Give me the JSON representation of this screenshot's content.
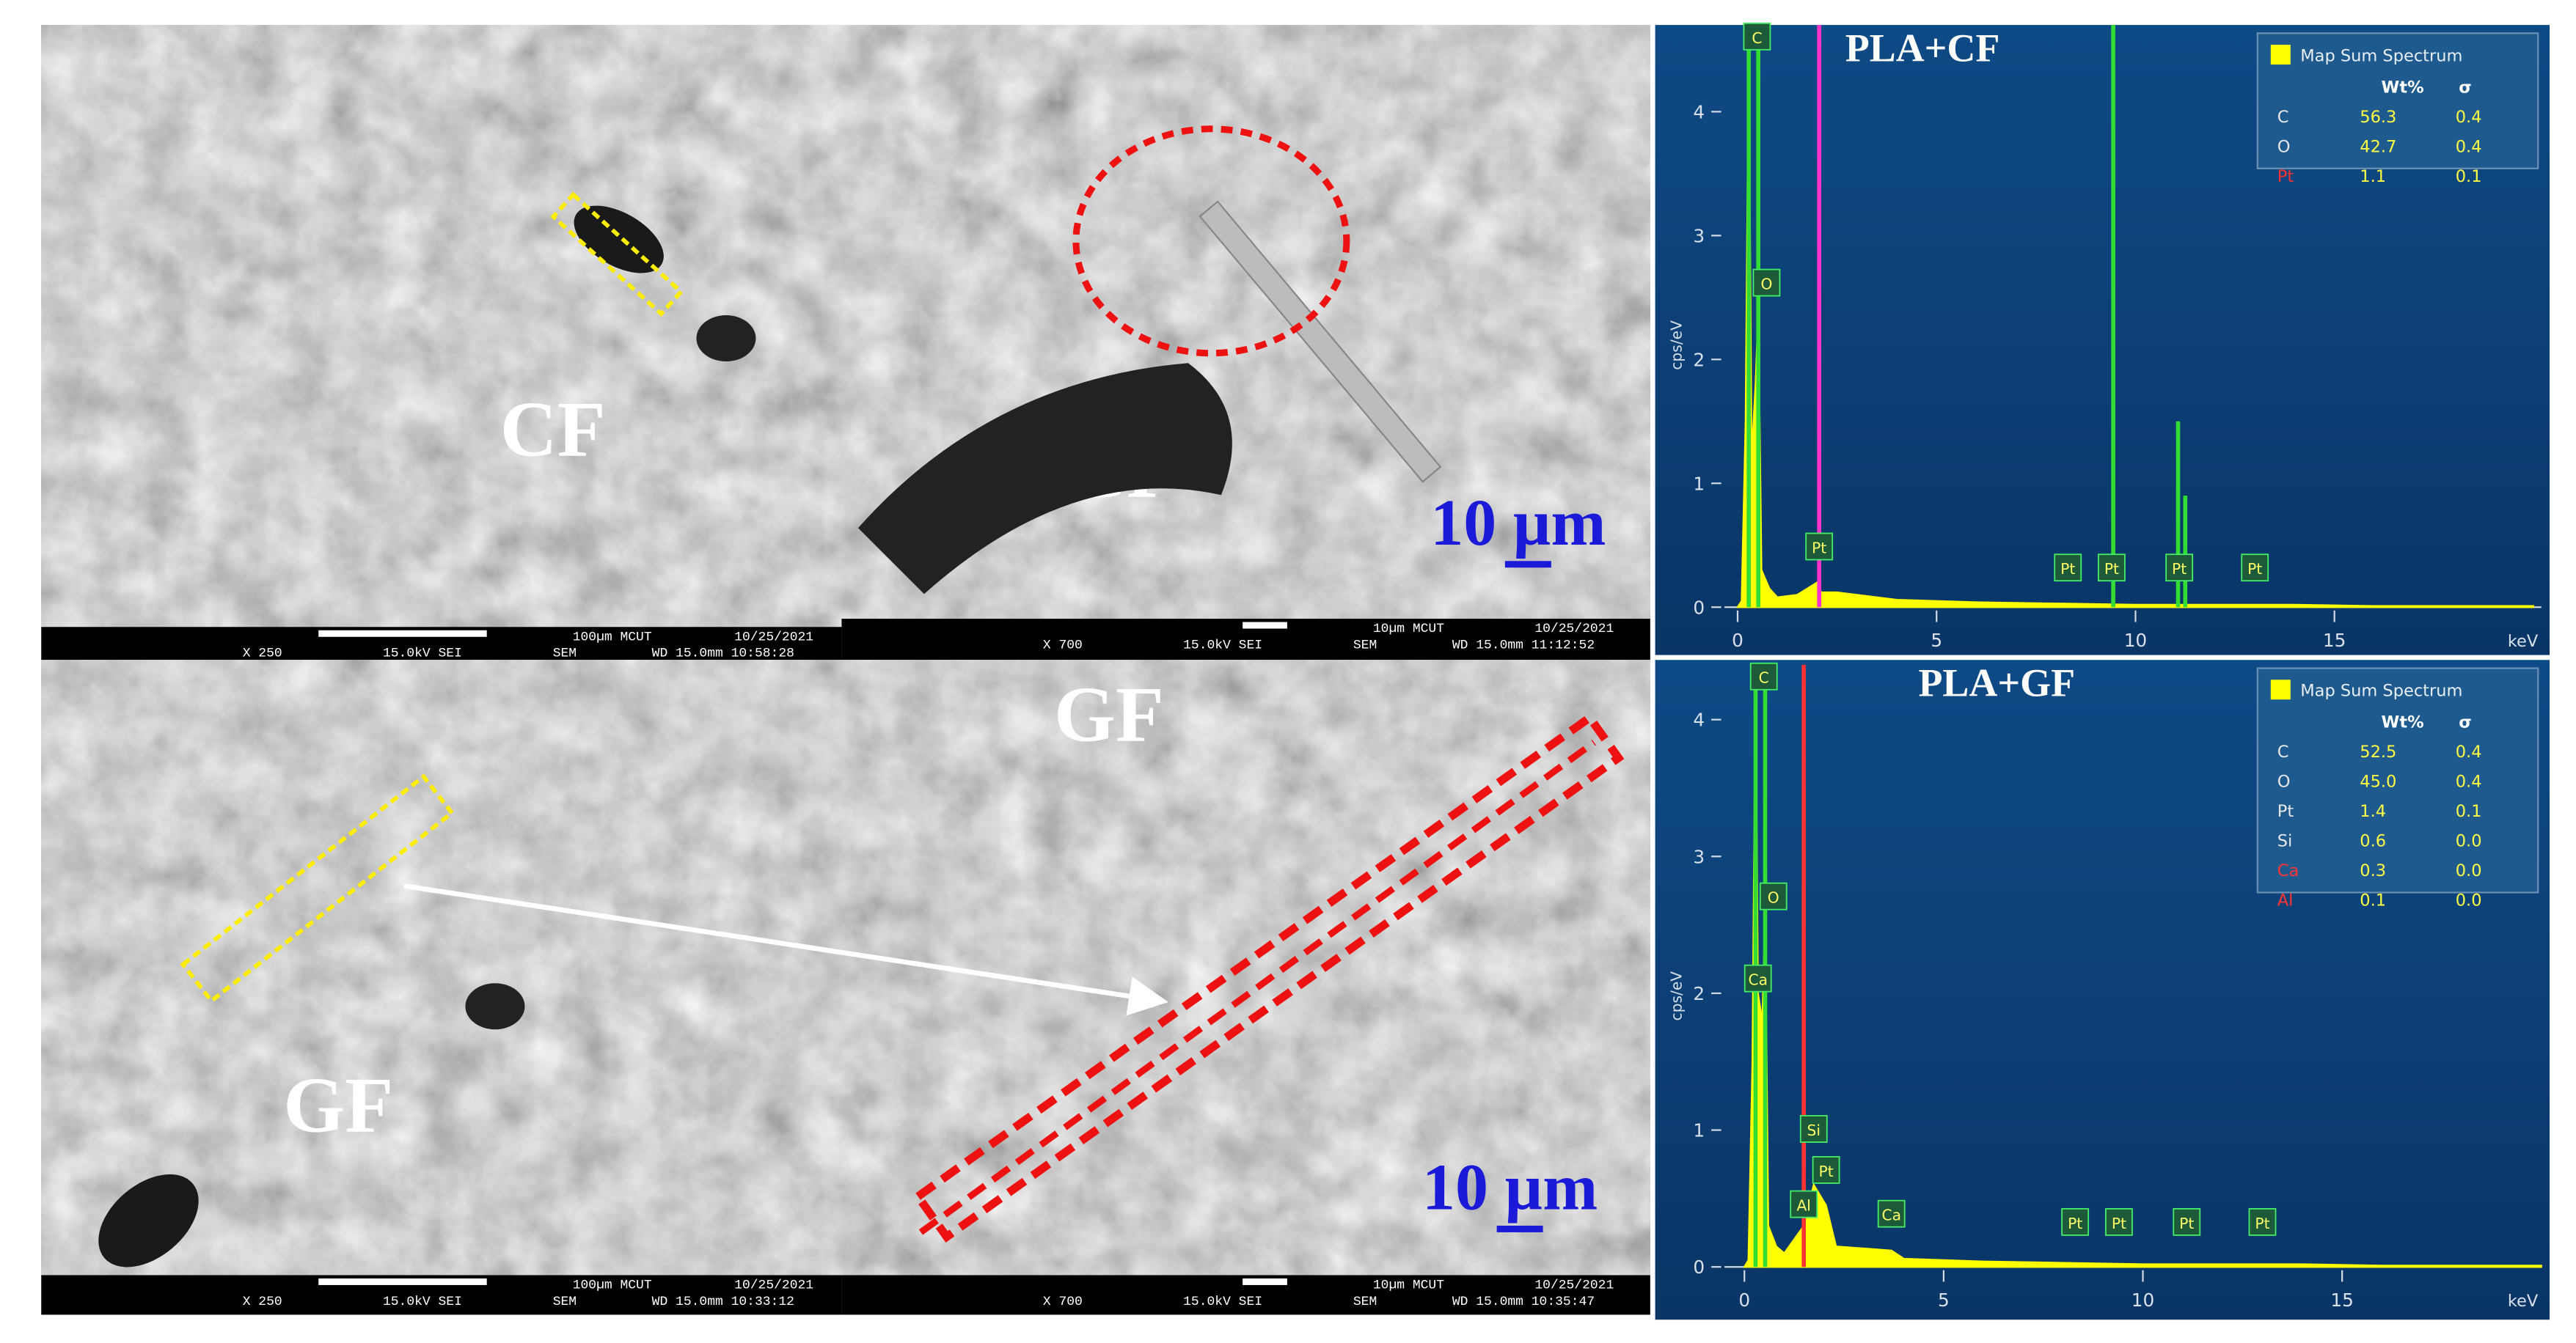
{
  "panels": [
    {
      "label": "CF",
      "info": {
        "mag": "X 250",
        "kv": "15.0kV SEI",
        "scale": "100µm MCUT",
        "mode": "SEM",
        "date": "10/25/2021",
        "wd": "WD 15.0mm 10:58:28"
      }
    },
    {
      "label": "CF",
      "scale_bar": "10 µm",
      "info": {
        "mag": "X 700",
        "kv": "15.0kV SEI",
        "scale": "10µm MCUT",
        "mode": "SEM",
        "date": "10/25/2021",
        "wd": "WD 15.0mm 11:12:52"
      }
    },
    {
      "label": "GF",
      "info": {
        "mag": "X 250",
        "kv": "15.0kV SEI",
        "scale": "100µm MCUT",
        "mode": "SEM",
        "date": "10/25/2021",
        "wd": "WD 15.0mm 10:33:12"
      }
    },
    {
      "label": "GF",
      "scale_bar": "10 µm",
      "info": {
        "mag": "X 700",
        "kv": "15.0kV SEI",
        "scale": "10µm MCUT",
        "mode": "SEM",
        "date": "10/25/2021",
        "wd": "WD 15.0mm 10:35:47"
      }
    }
  ],
  "spectra": [
    {
      "title": "PLA+CF",
      "ylabel": "cps/eV",
      "xlabel": "keV",
      "xlim": [
        -0.33,
        20.2
      ],
      "ylim": [
        0,
        4.7
      ],
      "xticks": [
        0,
        5,
        10,
        15
      ],
      "yticks": [
        0,
        1,
        2,
        3,
        4
      ],
      "spectrum": {
        "color": "#ffff00",
        "x": [
          0,
          0.1,
          0.2,
          0.28,
          0.35,
          0.45,
          0.52,
          0.6,
          0.8,
          1.0,
          1.5,
          2.0,
          2.1,
          2.5,
          4,
          6,
          8,
          10,
          12,
          14,
          16,
          18,
          20
        ],
        "values": [
          0,
          0.05,
          1.5,
          4.6,
          1.2,
          1.8,
          2.4,
          0.3,
          0.15,
          0.08,
          0.1,
          0.2,
          0.12,
          0.12,
          0.06,
          0.04,
          0.03,
          0.02,
          0.02,
          0.02,
          0.01,
          0.01,
          0.01
        ]
      },
      "lines": [
        {
          "x": 0.28,
          "color": "#33dd33"
        },
        {
          "x": 0.52,
          "color": "#33dd33"
        },
        {
          "x": 2.05,
          "color": "#ff33cc"
        },
        {
          "x": 9.44,
          "color": "#33dd33"
        }
      ],
      "peaks": [
        {
          "x": 11.07,
          "values": 1.5,
          "color": "#33dd33"
        },
        {
          "x": 11.25,
          "values": 0.9,
          "color": "#33dd33"
        }
      ],
      "peak_labels": [
        {
          "label": "C",
          "x": 0.28,
          "y": 4.6
        },
        {
          "label": "O",
          "x": 0.52,
          "y": 2.5
        },
        {
          "label": "Pt",
          "x": 2.05,
          "y": 0.37
        },
        {
          "label": "Pt",
          "x": 8.3,
          "y": 0.2
        },
        {
          "label": "Pt",
          "x": 9.4,
          "y": 0.2
        },
        {
          "label": "Pt",
          "x": 11.1,
          "y": 0.2
        },
        {
          "label": "Pt",
          "x": 13.0,
          "y": 0.2
        }
      ],
      "legend": {
        "title": "Map Sum Spectrum",
        "header": [
          "Wt%",
          "σ"
        ],
        "rows": [
          {
            "label": "C",
            "label_color": "#e8e8e8",
            "cells": [
              "56.3",
              "0.4"
            ]
          },
          {
            "label": "O",
            "label_color": "#e8e8e8",
            "cells": [
              "42.7",
              "0.4"
            ]
          },
          {
            "label": "Pt",
            "label_color": "#ff3333",
            "cells": [
              "1.1",
              "0.1"
            ]
          }
        ]
      }
    },
    {
      "title": "PLA+GF",
      "ylabel": "cps/eV",
      "xlabel": "keV",
      "xlim": [
        -0.5,
        20
      ],
      "ylim": [
        0,
        4.4
      ],
      "xticks": [
        0,
        5,
        10,
        15
      ],
      "yticks": [
        0,
        1,
        2,
        3,
        4
      ],
      "spectrum": {
        "color": "#ffff00",
        "x": [
          0,
          0.1,
          0.2,
          0.28,
          0.34,
          0.45,
          0.52,
          0.6,
          0.8,
          1.0,
          1.49,
          1.74,
          2.05,
          2.3,
          3.69,
          4,
          6,
          8,
          10,
          12,
          14,
          16,
          18,
          20
        ],
        "values": [
          0,
          0.05,
          1.5,
          4.3,
          2.0,
          1.8,
          2.6,
          0.3,
          0.15,
          0.1,
          0.3,
          0.6,
          0.45,
          0.15,
          0.12,
          0.06,
          0.04,
          0.03,
          0.02,
          0.02,
          0.02,
          0.01,
          0.01,
          0.01
        ]
      },
      "lines": [
        {
          "x": 0.28,
          "color": "#33dd33"
        },
        {
          "x": 0.52,
          "color": "#33dd33"
        },
        {
          "x": 1.49,
          "color": "#ff3333"
        }
      ],
      "peaks": [],
      "peak_labels": [
        {
          "label": "C",
          "x": 0.28,
          "y": 4.3
        },
        {
          "label": "O",
          "x": 0.52,
          "y": 2.6
        },
        {
          "label": "Ca",
          "x": 0.34,
          "y": 2.0
        },
        {
          "label": "Si",
          "x": 1.74,
          "y": 0.9
        },
        {
          "label": "Pt",
          "x": 2.05,
          "y": 0.6
        },
        {
          "label": "Al",
          "x": 1.49,
          "y": 0.35
        },
        {
          "label": "Ca",
          "x": 3.69,
          "y": 0.28
        },
        {
          "label": "Pt",
          "x": 8.3,
          "y": 0.22
        },
        {
          "label": "Pt",
          "x": 9.4,
          "y": 0.22
        },
        {
          "label": "Pt",
          "x": 11.1,
          "y": 0.22
        },
        {
          "label": "Pt",
          "x": 13.0,
          "y": 0.22
        }
      ],
      "legend": {
        "title": "Map Sum Spectrum",
        "header": [
          "Wt%",
          "σ"
        ],
        "rows": [
          {
            "label": "C",
            "label_color": "#e8e8e8",
            "cells": [
              "52.5",
              "0.4"
            ]
          },
          {
            "label": "O",
            "label_color": "#e8e8e8",
            "cells": [
              "45.0",
              "0.4"
            ]
          },
          {
            "label": "Pt",
            "label_color": "#e8e8e8",
            "cells": [
              "1.4",
              "0.1"
            ]
          },
          {
            "label": "Si",
            "label_color": "#e8e8e8",
            "cells": [
              "0.6",
              "0.0"
            ]
          },
          {
            "label": "Ca",
            "label_color": "#ff3333",
            "cells": [
              "0.3",
              "0.0"
            ]
          },
          {
            "label": "Al",
            "label_color": "#ff3333",
            "cells": [
              "0.1",
              "0.0"
            ]
          }
        ]
      }
    }
  ]
}
